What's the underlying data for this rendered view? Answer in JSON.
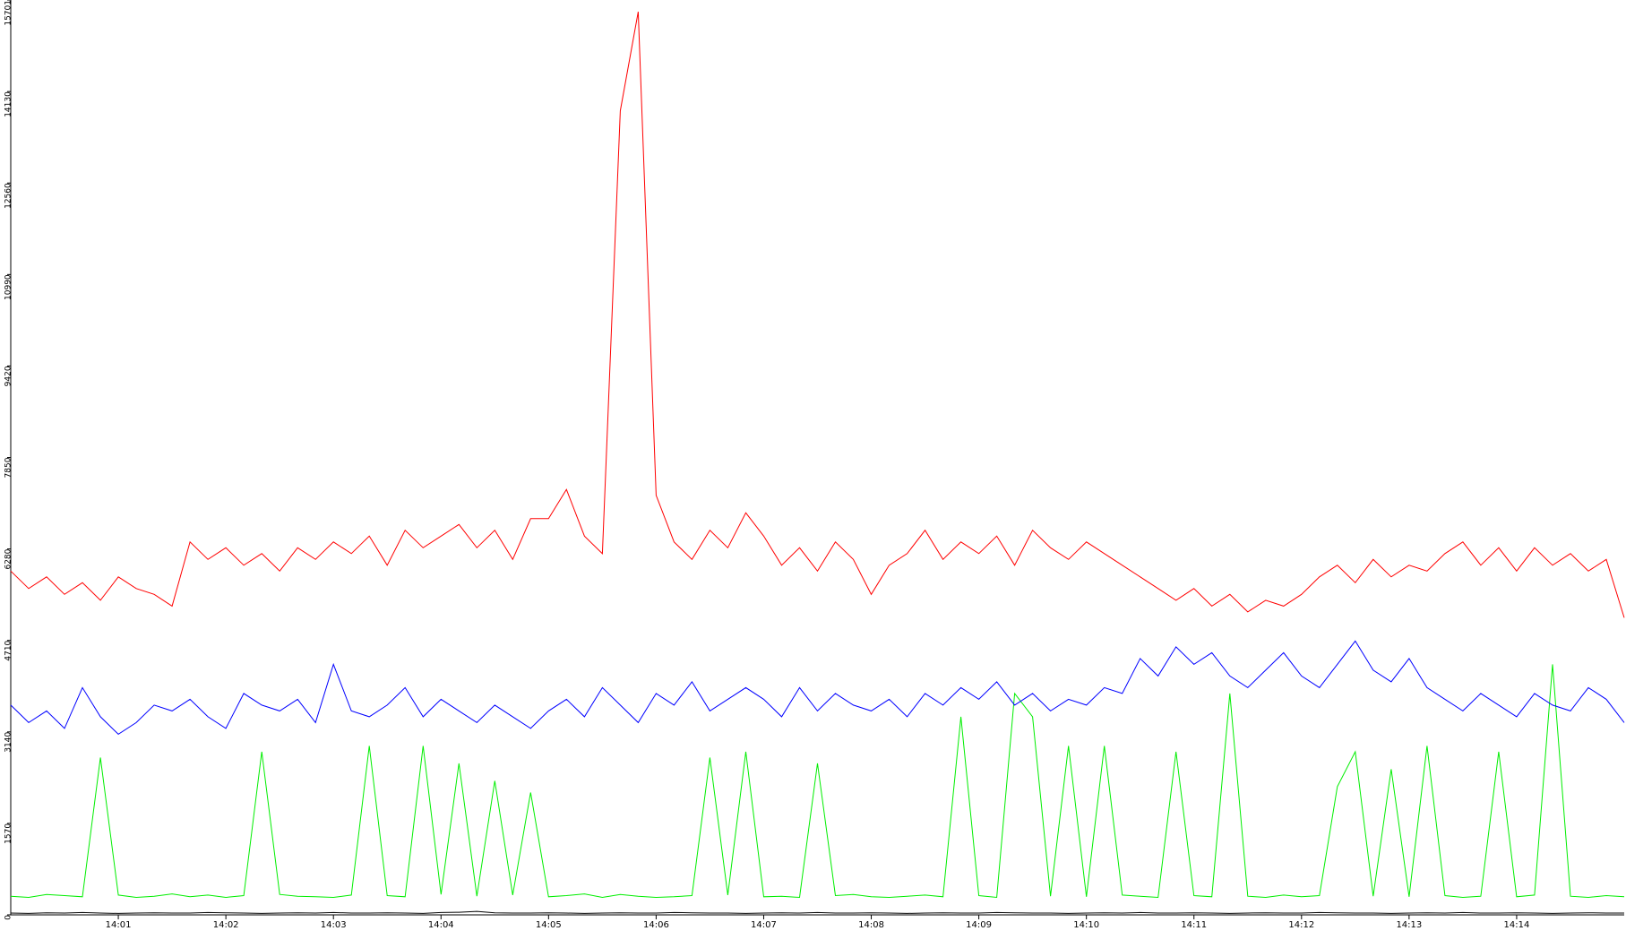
{
  "chart_data": {
    "type": "line",
    "categories": [
      null,
      null,
      null,
      null,
      null,
      null,
      "14:01",
      null,
      null,
      null,
      null,
      null,
      "14:02",
      null,
      null,
      null,
      null,
      null,
      "14:03",
      null,
      null,
      null,
      null,
      null,
      "14:04",
      null,
      null,
      null,
      null,
      null,
      "14:05",
      null,
      null,
      null,
      null,
      null,
      "14:06",
      null,
      null,
      null,
      null,
      null,
      "14:07",
      null,
      null,
      null,
      null,
      null,
      "14:08",
      null,
      null,
      null,
      null,
      null,
      "14:09",
      null,
      null,
      null,
      null,
      null,
      "14:10",
      null,
      null,
      null,
      null,
      null,
      "14:11",
      null,
      null,
      null,
      null,
      null,
      "14:12",
      null,
      null,
      null,
      null,
      null,
      "14:13",
      null,
      null,
      null,
      null,
      null,
      "14:14",
      null,
      null,
      null,
      null,
      null,
      null
    ],
    "ylim": [
      0,
      15701
    ],
    "yticks": [
      0,
      1570,
      3140,
      4710,
      6280,
      7850,
      9420,
      10990,
      12560,
      14130,
      15701
    ],
    "series": [
      {
        "color": "#ff0000",
        "values": [
          5900,
          5600,
          5800,
          5500,
          5700,
          5400,
          5800,
          5600,
          5500,
          5300,
          6400,
          6100,
          6300,
          6000,
          6200,
          5900,
          6300,
          6100,
          6400,
          6200,
          6500,
          6000,
          6600,
          6300,
          6500,
          6700,
          6300,
          6600,
          6100,
          6800,
          6800,
          7300,
          6500,
          6200,
          13800,
          15500,
          7200,
          6400,
          6100,
          6600,
          6300,
          6900,
          6500,
          6000,
          6300,
          5900,
          6400,
          6100,
          5500,
          6000,
          6200,
          6600,
          6100,
          6400,
          6200,
          6500,
          6000,
          6600,
          6300,
          6100,
          6400,
          6200,
          6000,
          5800,
          5600,
          5400,
          5600,
          5300,
          5500,
          5200,
          5400,
          5300,
          5500,
          5800,
          6000,
          5700,
          6100,
          5800,
          6000,
          5900,
          6200,
          6400,
          6000,
          6300,
          5900,
          6300,
          6000,
          6200,
          5900,
          6100,
          5100
        ]
      },
      {
        "color": "#0000ff",
        "values": [
          3600,
          3300,
          3500,
          3200,
          3900,
          3400,
          3100,
          3300,
          3600,
          3500,
          3700,
          3400,
          3200,
          3800,
          3600,
          3500,
          3700,
          3300,
          4300,
          3500,
          3400,
          3600,
          3900,
          3400,
          3700,
          3500,
          3300,
          3600,
          3400,
          3200,
          3500,
          3700,
          3400,
          3900,
          3600,
          3300,
          3800,
          3600,
          4000,
          3500,
          3700,
          3900,
          3700,
          3400,
          3900,
          3500,
          3800,
          3600,
          3500,
          3700,
          3400,
          3800,
          3600,
          3900,
          3700,
          4000,
          3600,
          3800,
          3500,
          3700,
          3600,
          3900,
          3800,
          4400,
          4100,
          4600,
          4300,
          4500,
          4100,
          3900,
          4200,
          4500,
          4100,
          3900,
          4300,
          4700,
          4200,
          4000,
          4400,
          3900,
          3700,
          3500,
          3800,
          3600,
          3400,
          3800,
          3600,
          3500,
          3900,
          3700,
          3300
        ]
      },
      {
        "color": "#00ee00",
        "values": [
          320,
          300,
          350,
          330,
          310,
          2700,
          340,
          300,
          320,
          360,
          310,
          340,
          300,
          330,
          2800,
          350,
          320,
          310,
          300,
          340,
          2900,
          330,
          310,
          2900,
          350,
          2600,
          320,
          2300,
          340,
          2100,
          310,
          330,
          360,
          300,
          350,
          320,
          300,
          310,
          330,
          2700,
          340,
          2800,
          310,
          320,
          300,
          2600,
          330,
          350,
          310,
          300,
          320,
          340,
          310,
          3400,
          330,
          300,
          3800,
          3400,
          320,
          2900,
          310,
          2900,
          340,
          320,
          300,
          2800,
          330,
          310,
          3800,
          320,
          300,
          340,
          310,
          330,
          2200,
          2800,
          320,
          2500,
          310,
          2900,
          330,
          300,
          320,
          2800,
          310,
          340,
          4300,
          320,
          300,
          330,
          310
        ]
      },
      {
        "color": "#000000",
        "values": [
          30,
          25,
          35,
          30,
          40,
          30,
          25,
          30,
          35,
          30,
          30,
          40,
          35,
          30,
          25,
          30,
          35,
          30,
          40,
          30,
          30,
          35,
          30,
          25,
          40,
          45,
          60,
          35,
          30,
          30,
          35,
          30,
          25,
          30,
          35,
          30,
          30,
          40,
          35,
          30,
          30,
          25,
          30,
          35,
          30,
          40,
          30,
          30,
          35,
          30,
          25,
          30,
          35,
          30,
          30,
          40,
          35,
          30,
          30,
          25,
          30,
          35,
          30,
          40,
          30,
          30,
          35,
          30,
          25,
          30,
          35,
          30,
          30,
          40,
          35,
          30,
          30,
          25,
          30,
          35,
          30,
          40,
          30,
          30,
          35,
          30,
          25,
          30,
          35,
          30,
          30
        ]
      }
    ]
  }
}
